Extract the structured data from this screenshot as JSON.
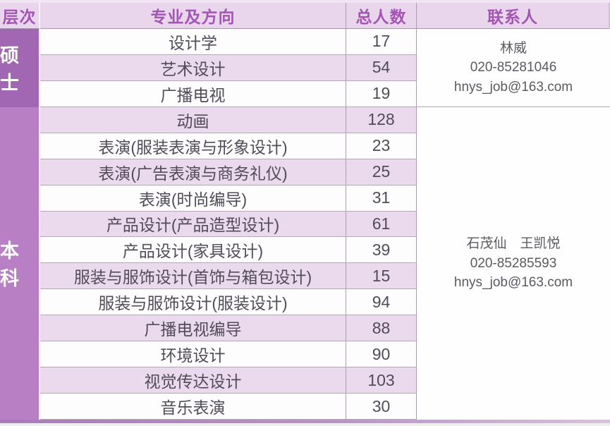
{
  "table": {
    "columns": {
      "level": "层次",
      "major": "专业及方向",
      "count": "总人数",
      "contact": "联系人"
    },
    "groups": [
      {
        "level": "硕士",
        "contact_name": "林威",
        "contact_phone": "020-85281046",
        "contact_email": "hnys_job@163.com"
      },
      {
        "level": "本科",
        "contact_name": "石茂仙　王凯悦",
        "contact_phone": "020-85285593",
        "contact_email": "hnys_job@163.com"
      }
    ],
    "rows": [
      {
        "major": "设计学",
        "count": "17"
      },
      {
        "major": "艺术设计",
        "count": "54"
      },
      {
        "major": "广播电视",
        "count": "19"
      },
      {
        "major": "动画",
        "count": "128"
      },
      {
        "major": "表演(服装表演与形象设计)",
        "count": "23"
      },
      {
        "major": "表演(广告表演与商务礼仪)",
        "count": "25"
      },
      {
        "major": "表演(时尚编导)",
        "count": "31"
      },
      {
        "major": "产品设计(产品造型设计)",
        "count": "61"
      },
      {
        "major": "产品设计(家具设计)",
        "count": "39"
      },
      {
        "major": "服装与服饰设计(首饰与箱包设计)",
        "count": "15"
      },
      {
        "major": "服装与服饰设计(服装设计)",
        "count": "94"
      },
      {
        "major": "广播电视编导",
        "count": "88"
      },
      {
        "major": "环境设计",
        "count": "90"
      },
      {
        "major": "视觉传达设计",
        "count": "103"
      },
      {
        "major": "音乐表演",
        "count": "30"
      }
    ]
  },
  "colors": {
    "header_bg": "#e9d5ec",
    "header_text": "#a355b3",
    "master_block": "#a167b3",
    "bachelor_block": "#b87fc4",
    "stripe_row": "#ebd9ee",
    "body_text": "#514c58",
    "grid_line": "#b3a9b6",
    "bottom_strip": "#a97bb9"
  }
}
